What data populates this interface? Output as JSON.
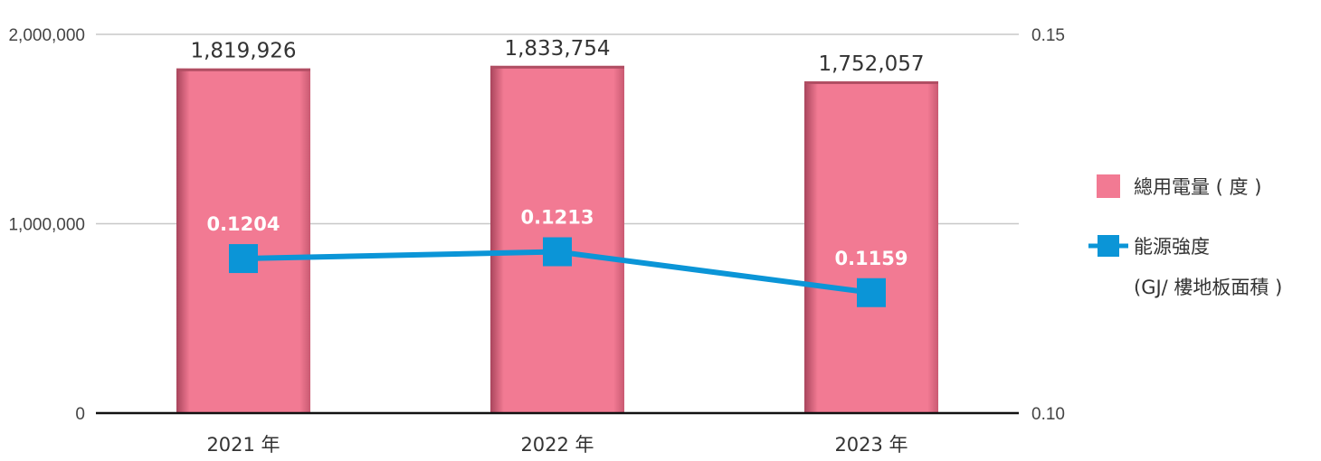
{
  "chart_data": {
    "type": "bar",
    "categories": [
      "2021 年",
      "2022 年",
      "2023 年"
    ],
    "series": [
      {
        "name": "總用電量 ( 度 )",
        "type": "bar",
        "axis": "left",
        "color": "#f27a93",
        "values": [
          1819926,
          1833754,
          1752057
        ],
        "value_labels": [
          "1,819,926",
          "1,833,754",
          "1,752,057"
        ]
      },
      {
        "name": "能源強度",
        "name_line2": "(GJ/ 樓地板面積 )",
        "type": "line",
        "axis": "right",
        "color": "#0b95d7",
        "values": [
          0.1204,
          0.1213,
          0.1159
        ],
        "value_labels": [
          "0.1204",
          "0.1213",
          "0.1159"
        ]
      }
    ],
    "y_left": {
      "range": [
        0,
        2000000
      ],
      "ticks": [
        0,
        1000000,
        2000000
      ],
      "tick_labels": [
        "0",
        "1,000,000",
        "2,000,000"
      ]
    },
    "y_right": {
      "range": [
        0.1,
        0.15
      ],
      "ticks": [
        0.1,
        0.15
      ],
      "tick_labels": [
        "0.10",
        "0.15"
      ]
    },
    "grid": true,
    "legend_position": "right"
  }
}
